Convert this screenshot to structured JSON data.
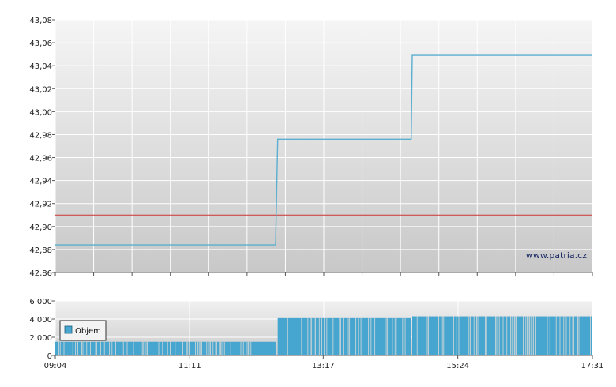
{
  "watermark": "www.patria.cz",
  "legend_label": "Objem",
  "colors": {
    "price_line": "#5aaed0",
    "reference_line": "#cc3333",
    "volume_bars": "#46a6cf",
    "grid": "#ffffff"
  },
  "chart_data": [
    {
      "type": "line",
      "title": "",
      "xlabel": "",
      "ylabel": "",
      "x_ticks": [
        "09:04",
        "11:11",
        "13:17",
        "15:24",
        "17:31"
      ],
      "y_ticks": [
        "42,86",
        "42,88",
        "42,90",
        "42,92",
        "42,94",
        "42,96",
        "42,98",
        "43,00",
        "43,02",
        "43,04",
        "43,06",
        "43,08"
      ],
      "ylim": [
        42.86,
        43.08
      ],
      "xlim": [
        "09:04",
        "17:31"
      ],
      "grid": true,
      "series": [
        {
          "type": "step",
          "x": [
            "09:04",
            "12:32",
            "12:34",
            "14:40",
            "14:41",
            "17:31"
          ],
          "y": [
            42.884,
            42.884,
            42.976,
            42.976,
            43.049,
            43.049
          ]
        }
      ],
      "reference_line": {
        "y": 42.91
      }
    },
    {
      "type": "bar",
      "title": "",
      "ylim": [
        0,
        6000
      ],
      "y_ticks": [
        "0",
        "2 000",
        "4 000",
        "6 000"
      ],
      "x_ticks": [
        "09:04",
        "11:11",
        "13:17",
        "15:24",
        "17:31"
      ],
      "grid": true,
      "legend": [
        "Objem"
      ],
      "legend_position": "left",
      "volume_blocks": [
        {
          "from": "09:04",
          "to": "12:32",
          "value": 1500
        },
        {
          "from": "12:34",
          "to": "14:40",
          "value": 4100
        },
        {
          "from": "14:41",
          "to": "17:31",
          "value": 4300
        }
      ]
    }
  ]
}
